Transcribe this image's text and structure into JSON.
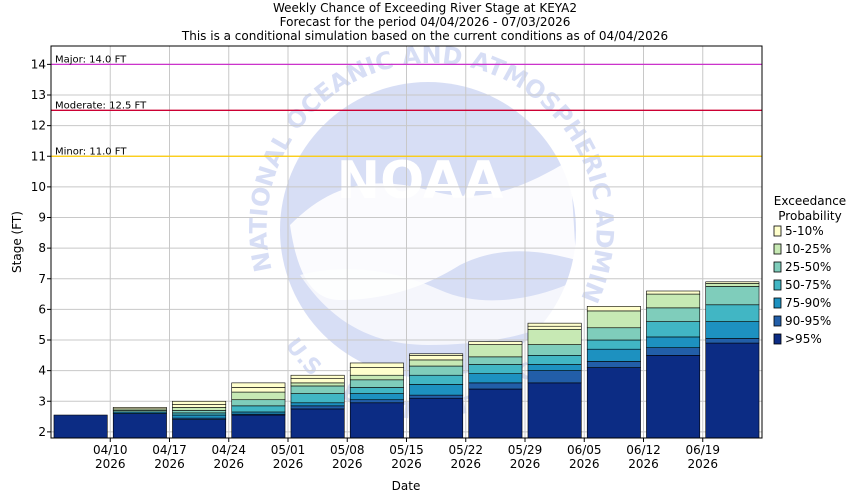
{
  "chart_data": {
    "type": "bar",
    "title": "Weekly Chance of Exceeding River Stage at KEYA2",
    "subtitle_1": "Forecast for the period 04/04/2026 - 07/03/2026",
    "subtitle_2": "This is a conditional simulation based on the current conditions as of 04/04/2026",
    "xlabel": "Date",
    "ylabel": "Stage (FT)",
    "ylim": [
      1.8,
      14.6
    ],
    "yticks": [
      2,
      3,
      4,
      5,
      6,
      7,
      8,
      9,
      10,
      11,
      12,
      13,
      14
    ],
    "grid": true,
    "legend_title_1": "Exceedance",
    "legend_title_2": "Probability",
    "legend_placement": "right",
    "xtick_labels": [
      {
        "date": "04/10",
        "year": "2026"
      },
      {
        "date": "04/17",
        "year": "2026"
      },
      {
        "date": "04/24",
        "year": "2026"
      },
      {
        "date": "05/01",
        "year": "2026"
      },
      {
        "date": "05/08",
        "year": "2026"
      },
      {
        "date": "05/15",
        "year": "2026"
      },
      {
        "date": "05/22",
        "year": "2026"
      },
      {
        "date": "05/29",
        "year": "2026"
      },
      {
        "date": "06/05",
        "year": "2026"
      },
      {
        "date": "06/12",
        "year": "2026"
      },
      {
        "date": "06/19",
        "year": "2026"
      }
    ],
    "flood_levels": [
      {
        "label": "Major: 14.0 FT",
        "value": 14.0,
        "color": "#cc33cc"
      },
      {
        "label": "Moderate: 12.5 FT",
        "value": 12.5,
        "color": "#cc0033"
      },
      {
        "label": "Minor: 11.0 FT",
        "value": 11.0,
        "color": "#ffcc00"
      }
    ],
    "series": [
      {
        "name": "5-10%",
        "color": "#ffffcc"
      },
      {
        "name": "10-25%",
        "color": "#c7e9b4"
      },
      {
        "name": "25-50%",
        "color": "#7fcdbb"
      },
      {
        "name": "50-75%",
        "color": "#41b6c4"
      },
      {
        "name": "75-90%",
        "color": "#1d91c0"
      },
      {
        "name": "90-95%",
        "color": "#225ea8"
      },
      {
        "name": ">95%",
        "color": "#0c2c84"
      }
    ],
    "weeks": [
      {
        "levels": [
          2.55,
          2.55,
          2.55,
          2.55,
          2.55,
          2.55,
          2.55,
          2.55
        ]
      },
      {
        "levels": [
          2.6,
          2.6,
          2.65,
          2.65,
          2.7,
          2.75,
          2.8,
          2.8
        ]
      },
      {
        "levels": [
          2.4,
          2.45,
          2.55,
          2.62,
          2.7,
          2.8,
          2.9,
          3.0
        ]
      },
      {
        "levels": [
          2.55,
          2.58,
          2.65,
          2.85,
          3.05,
          3.3,
          3.45,
          3.6
        ]
      },
      {
        "levels": [
          2.75,
          2.85,
          2.95,
          3.25,
          3.5,
          3.6,
          3.75,
          3.85
        ]
      },
      {
        "levels": [
          2.95,
          3.05,
          3.25,
          3.45,
          3.7,
          3.85,
          4.1,
          4.25
        ]
      },
      {
        "levels": [
          3.1,
          3.2,
          3.55,
          3.85,
          4.15,
          4.35,
          4.5,
          4.55
        ]
      },
      {
        "levels": [
          3.4,
          3.6,
          3.9,
          4.2,
          4.45,
          4.85,
          4.95,
          4.95
        ]
      },
      {
        "levels": [
          3.6,
          4.0,
          4.2,
          4.5,
          4.85,
          5.35,
          5.45,
          5.55
        ]
      },
      {
        "levels": [
          4.1,
          4.3,
          4.7,
          5.0,
          5.4,
          5.95,
          6.1,
          6.1
        ]
      },
      {
        "levels": [
          4.5,
          4.75,
          5.1,
          5.6,
          6.05,
          6.5,
          6.6,
          6.6
        ]
      },
      {
        "levels": [
          4.9,
          5.05,
          5.6,
          6.15,
          6.75,
          6.85,
          6.9,
          6.9
        ]
      }
    ]
  },
  "watermark": {
    "logo_text": "NOAA",
    "ring_text": "NATIONAL OCEANIC AND ATMOSPHERIC ADMINISTRATION",
    "bottom_text": "U.S. DEPARTMENT OF COMMERCE"
  }
}
